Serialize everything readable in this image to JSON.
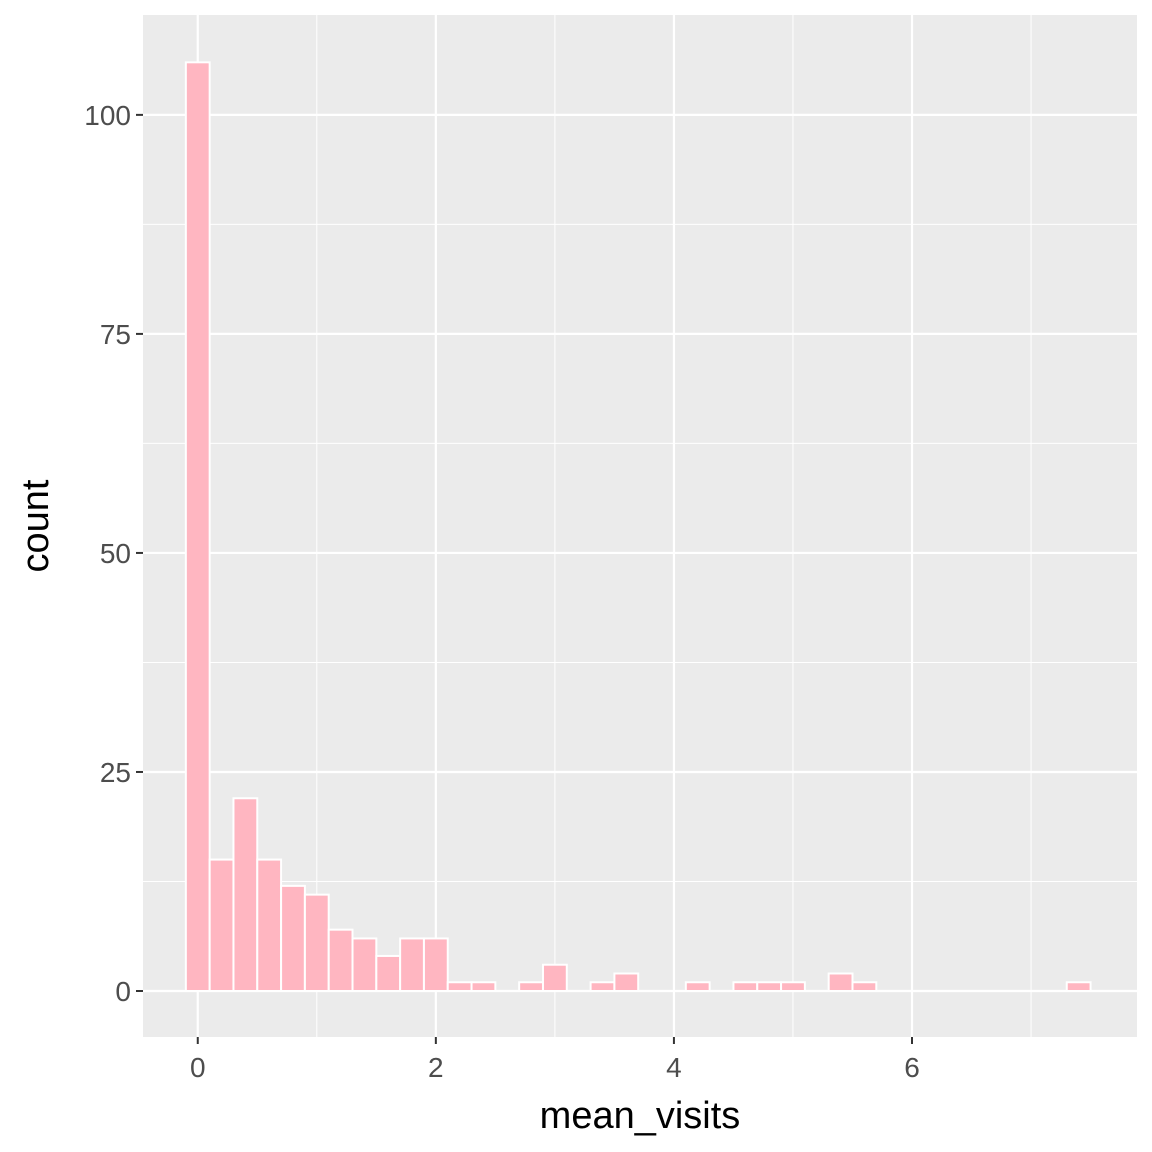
{
  "chart_data": {
    "type": "histogram",
    "x_label": "mean_visits",
    "y_label": "count",
    "bins": [
      -0.1,
      0.1,
      0.3,
      0.5,
      0.7,
      0.9,
      1.1,
      1.3,
      1.5,
      1.7,
      1.9,
      2.1,
      2.3,
      2.5,
      2.7,
      2.9,
      3.1,
      3.3,
      3.5,
      3.7,
      3.9,
      4.1,
      4.3,
      4.5,
      4.7,
      4.9,
      5.1,
      5.3,
      5.5,
      5.7,
      5.9,
      6.1,
      6.3,
      6.5,
      6.7,
      6.9,
      7.1,
      7.3,
      7.5
    ],
    "values": [
      106,
      15,
      22,
      15,
      12,
      11,
      7,
      6,
      4,
      6,
      6,
      1,
      1,
      0,
      1,
      3,
      0,
      1,
      2,
      0,
      0,
      1,
      0,
      1,
      1,
      1,
      0,
      2,
      1,
      0,
      0,
      0,
      0,
      0,
      0,
      0,
      0,
      1
    ],
    "color": "#ffb6c1",
    "edge_color": "#ffffff",
    "xlim": [
      -0.46,
      7.89
    ],
    "ylim": [
      -5.25,
      111.4
    ],
    "xticks": [
      0,
      2,
      4,
      6
    ],
    "yticks": [
      0,
      25,
      50,
      75,
      100
    ],
    "minor_xticks": [
      1,
      3,
      5,
      7
    ],
    "minor_yticks": [
      12.5,
      37.5,
      62.5,
      87.5
    ],
    "grid": true
  }
}
